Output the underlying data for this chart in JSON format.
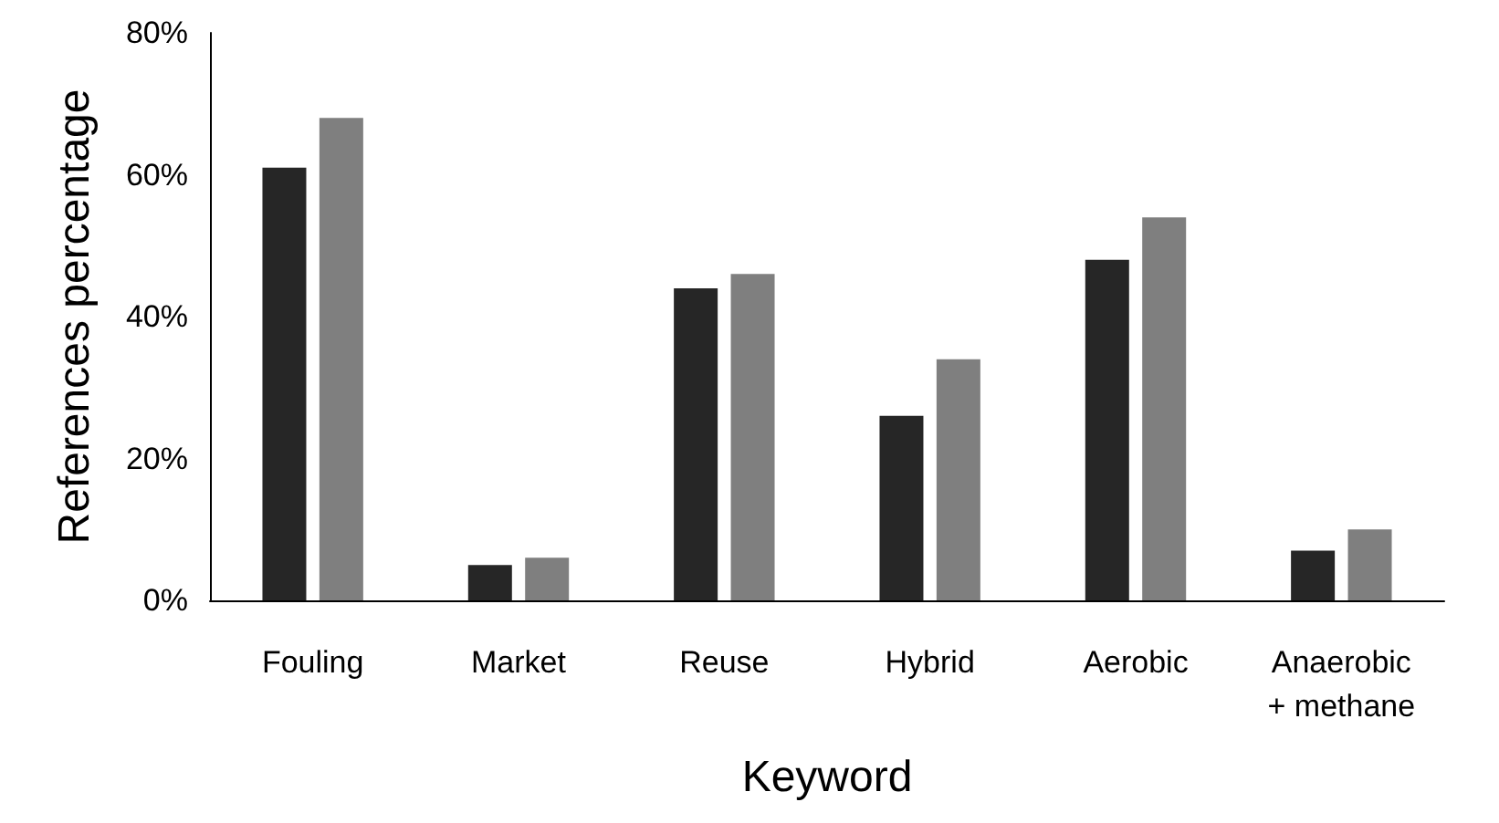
{
  "chart_data": {
    "type": "bar",
    "xlabel": "Keyword",
    "ylabel": "References percentage",
    "categories": [
      "Fouling",
      "Market",
      "Reuse",
      "Hybrid",
      "Aerobic",
      "Anaerobic\n+ methane"
    ],
    "series": [
      {
        "color": "#262626",
        "values": [
          61,
          5,
          44,
          26,
          48,
          7
        ]
      },
      {
        "color": "#7f7f7f",
        "values": [
          68,
          6,
          46,
          34,
          54,
          10
        ]
      }
    ],
    "ylim": [
      0,
      80
    ],
    "yticks": [
      {
        "value": 0,
        "label": "0%"
      },
      {
        "value": 20,
        "label": "20%"
      },
      {
        "value": 40,
        "label": "40%"
      },
      {
        "value": 60,
        "label": "60%"
      },
      {
        "value": 80,
        "label": "80%"
      }
    ],
    "data_labels": false
  }
}
